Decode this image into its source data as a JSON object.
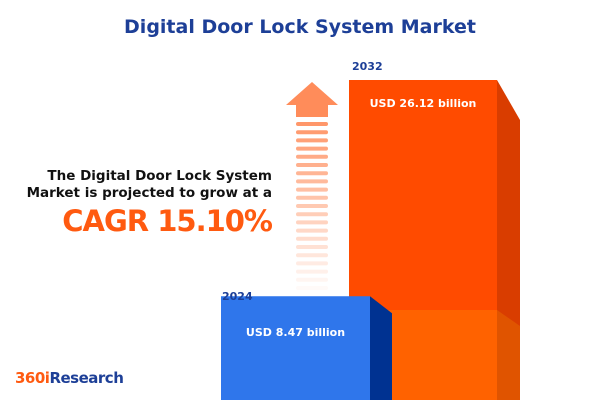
{
  "title": "Digital Door Lock System Market",
  "description": "The Digital Door Lock System Market is projected to grow at a",
  "cagr": "CAGR 15.10%",
  "logo": {
    "part1": "360i",
    "part2": "Research"
  },
  "colors": {
    "bar_2024": "#2f76eb",
    "bar_2032": "#ff4b00",
    "arrow": "#ff8c5a",
    "title": "#1d3f97"
  },
  "chart_data": {
    "type": "bar",
    "categories": [
      "2024",
      "2032"
    ],
    "values": [
      8.47,
      26.12
    ],
    "value_labels": [
      "USD 8.47 billion",
      "USD 26.12 billion"
    ],
    "unit": "USD billion"
  }
}
